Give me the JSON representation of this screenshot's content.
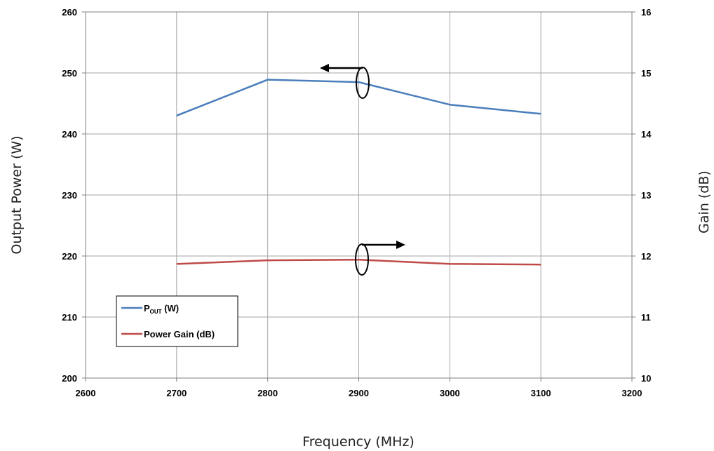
{
  "chart_data": {
    "type": "line",
    "xlabel": "Frequency (MHz)",
    "ylabel": "Output Power (W)",
    "y2label": "Gain (dB)",
    "xlim": [
      2600,
      3200
    ],
    "ylim": [
      200,
      260
    ],
    "y2lim": [
      10,
      16
    ],
    "x_ticks": [
      "2600",
      "2700",
      "2800",
      "2900",
      "3000",
      "3100",
      "3200"
    ],
    "y_ticks": [
      "200",
      "210",
      "220",
      "230",
      "240",
      "250",
      "260"
    ],
    "y2_ticks": [
      "10",
      "11",
      "12",
      "13",
      "14",
      "15",
      "16"
    ],
    "grid": true,
    "legend_position": "bottom-left",
    "x": [
      2700,
      2800,
      2900,
      3000,
      3100
    ],
    "series": [
      {
        "name_main": "P",
        "name_sub": "OUT",
        "name_rest": " (W)",
        "axis": "left",
        "color": "#4A7EBB",
        "values": [
          243.0,
          248.9,
          248.5,
          244.8,
          243.3
        ]
      },
      {
        "name": "Power Gain (dB)",
        "axis": "right",
        "color": "#BE4B48",
        "values": [
          11.87,
          11.93,
          11.94,
          11.87,
          11.86
        ]
      }
    ]
  }
}
